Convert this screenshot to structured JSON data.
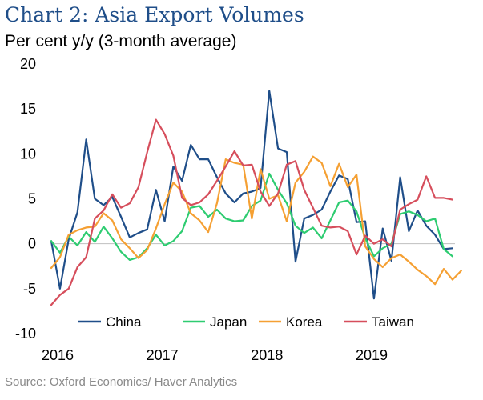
{
  "chart_data": {
    "type": "line",
    "title": "Chart 2:  Asia Export Volumes",
    "subtitle": "Per cent y/y (3-month average)",
    "source": "Source: Oxford Economics/ Haver Analytics",
    "ylim": [
      -10,
      20
    ],
    "xlim": [
      0,
      47
    ],
    "y_ticks": [
      -10,
      -5,
      0,
      5,
      10,
      15,
      20
    ],
    "y_tick_labels": [
      "-10",
      "-5",
      "0",
      "5",
      "10",
      "15",
      "20"
    ],
    "x_ticks": [
      {
        "label": "2016",
        "index": 0
      },
      {
        "label": "2017",
        "index": 12
      },
      {
        "label": "2018",
        "index": 24
      },
      {
        "label": "2019",
        "index": 36
      }
    ],
    "legend_position": "bottom-inside",
    "series": [
      {
        "name": "China",
        "color": "#1f4e89",
        "values": [
          0.3,
          -5.0,
          0.5,
          3.5,
          11.6,
          5.0,
          4.3,
          5.2,
          3.0,
          0.7,
          1.2,
          1.6,
          6.0,
          2.5,
          8.6,
          7.0,
          11.0,
          9.4,
          9.4,
          7.4,
          5.6,
          4.6,
          5.6,
          5.8,
          6.2,
          17.0,
          10.6,
          10.2,
          -2.0,
          2.8,
          3.2,
          3.8,
          5.8,
          7.6,
          7.2,
          2.4,
          2.5,
          -6.1,
          1.7,
          -1.9,
          7.4,
          1.4,
          3.7,
          2.0,
          1.0,
          -0.6,
          -0.5
        ]
      },
      {
        "name": "Japan",
        "color": "#2ecc71",
        "values": [
          0.3,
          -1.0,
          0.8,
          -0.2,
          1.3,
          0.2,
          1.9,
          0.6,
          -0.9,
          -1.8,
          -1.5,
          -0.5,
          1.0,
          -0.2,
          0.3,
          1.4,
          4.0,
          4.2,
          3.0,
          3.8,
          2.8,
          2.5,
          2.6,
          4.2,
          4.8,
          7.8,
          6.0,
          4.5,
          2.0,
          1.2,
          1.8,
          0.6,
          2.6,
          4.6,
          4.8,
          3.6,
          0.6,
          -1.4,
          -0.5,
          0.0,
          3.3,
          3.6,
          3.2,
          2.5,
          2.8,
          -0.6,
          -1.4
        ]
      },
      {
        "name": "Korea",
        "color": "#f5a033",
        "values": [
          -2.7,
          -1.5,
          1.0,
          1.5,
          1.8,
          1.9,
          3.4,
          2.6,
          0.5,
          -0.5,
          -1.6,
          -0.7,
          1.7,
          4.4,
          6.8,
          5.8,
          3.4,
          2.6,
          1.3,
          4.5,
          9.4,
          9.0,
          8.8,
          2.8,
          8.3,
          5.0,
          5.4,
          2.5,
          6.8,
          8.0,
          9.7,
          9.0,
          6.4,
          8.9,
          6.3,
          7.7,
          -0.3,
          -1.7,
          -2.6,
          -1.6,
          -1.2,
          -2.0,
          -2.9,
          -3.6,
          -4.5,
          -2.8,
          -4.0,
          -3.0
        ]
      },
      {
        "name": "Taiwan",
        "color": "#d64e5c",
        "values": [
          -6.8,
          -5.7,
          -5.0,
          -2.6,
          -1.5,
          2.8,
          3.7,
          5.5,
          4.0,
          4.5,
          6.3,
          10.2,
          13.8,
          12.2,
          9.8,
          5.1,
          4.3,
          4.6,
          5.5,
          7.0,
          8.6,
          10.3,
          8.7,
          8.8,
          5.8,
          4.2,
          5.6,
          8.8,
          9.2,
          6.0,
          4.0,
          2.0,
          1.8,
          1.9,
          1.4,
          -1.2,
          0.9,
          0.0,
          0.5,
          -0.3,
          3.8,
          4.4,
          4.9,
          7.5,
          5.1,
          5.1,
          4.9
        ]
      }
    ]
  }
}
